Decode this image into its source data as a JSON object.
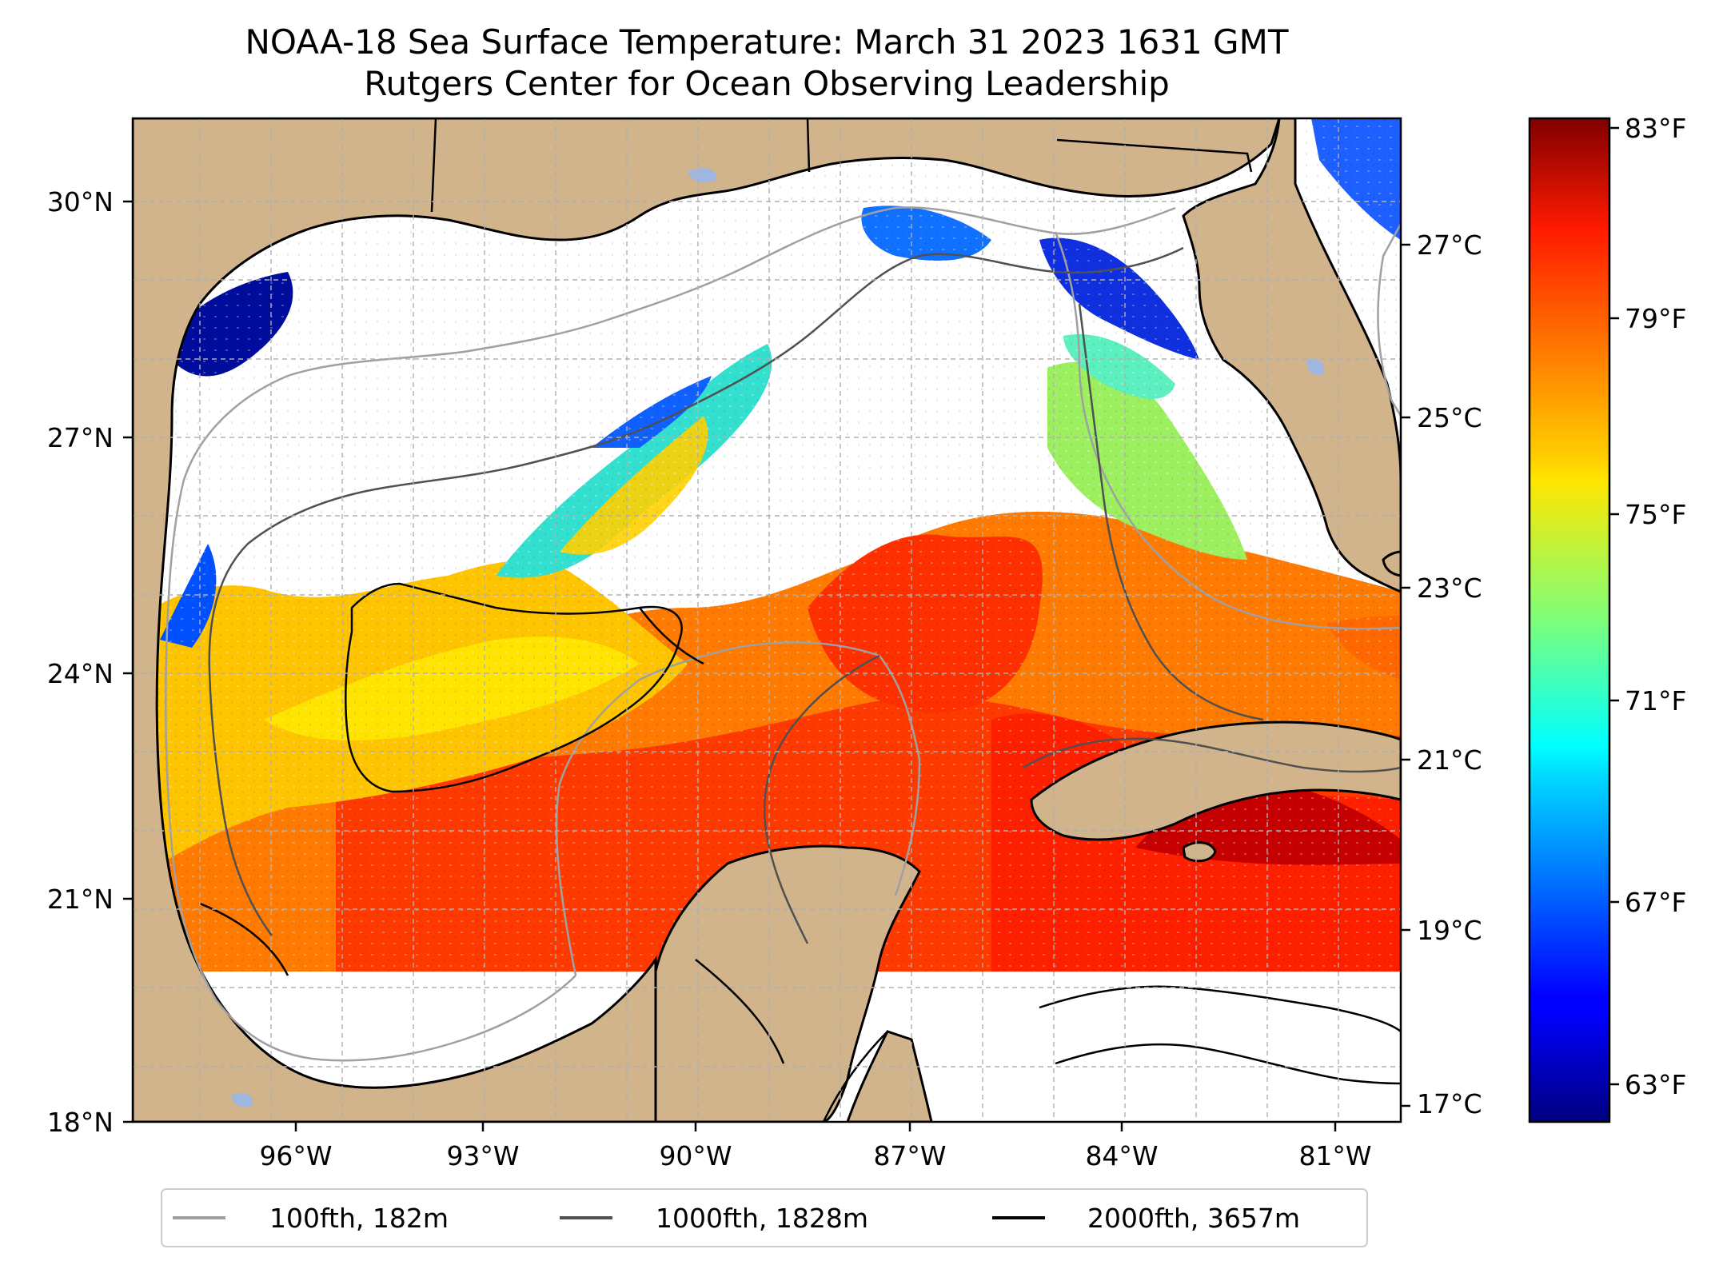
{
  "title": "NOAA-18 Sea Surface Temperature: March 31 2023 1631 GMT",
  "subtitle": "Rutgers Center for Ocean Observing Leadership",
  "map": {
    "region": "Gulf of Mexico",
    "lon_range": [
      -98.3,
      -80.5
    ],
    "lat_range": [
      18,
      31
    ],
    "lat_ticks": [
      "18°N",
      "21°N",
      "24°N",
      "27°N",
      "30°N"
    ],
    "lon_ticks": [
      "96°W",
      "93°W",
      "90°W",
      "87°W",
      "84°W",
      "81°W"
    ],
    "colors": {
      "land": "#d2b48c",
      "no_data": "#ffffff",
      "grid": "#b0b0b0"
    }
  },
  "colorbar": {
    "colormap": "jet",
    "celsius_ticks": [
      "17°C",
      "19°C",
      "21°C",
      "23°C",
      "25°C",
      "27°C"
    ],
    "fahrenheit_ticks": [
      "63°F",
      "67°F",
      "71°F",
      "75°F",
      "79°F",
      "83°F"
    ],
    "range_f": [
      62,
      84
    ]
  },
  "legend": {
    "items": [
      {
        "label": "100fth, 182m",
        "color": "#a0a0a0"
      },
      {
        "label": "1000fth, 1828m",
        "color": "#505050"
      },
      {
        "label": "2000fth, 3657m",
        "color": "#000000"
      }
    ]
  }
}
